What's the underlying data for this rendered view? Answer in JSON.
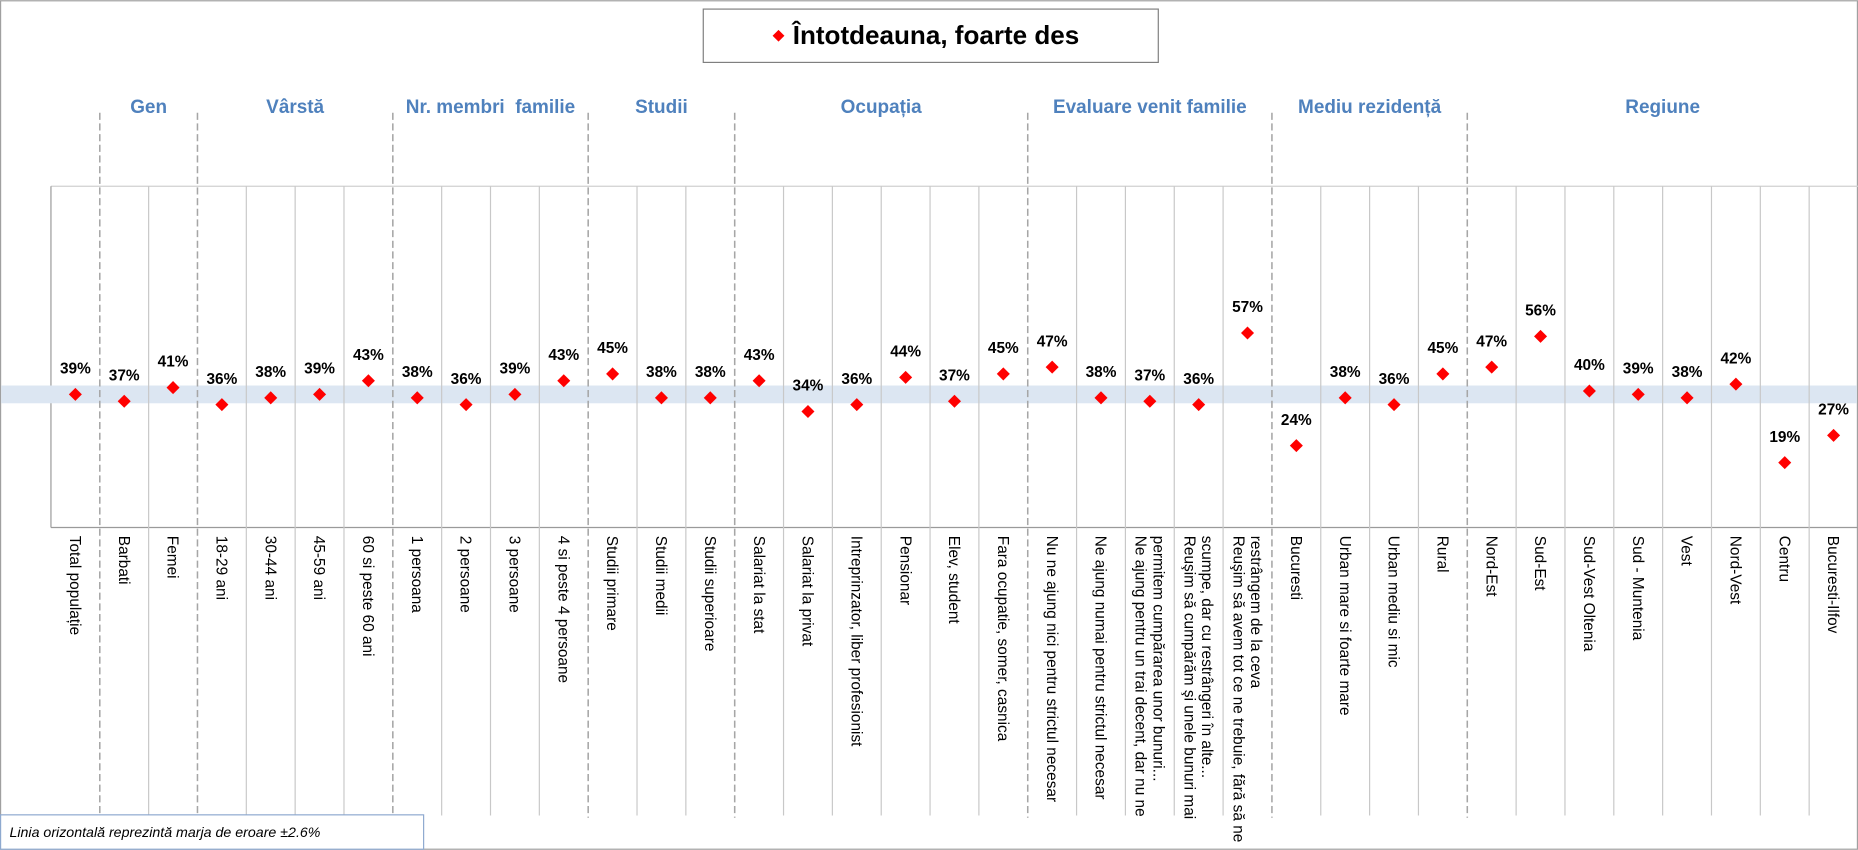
{
  "chart_data": {
    "type": "dot",
    "legend": "top",
    "ylim": [
      0,
      100
    ],
    "categories": [
      "Total populație",
      "Barbati",
      "Femei",
      "18-29 ani",
      "30-44 ani",
      "45-59 ani",
      "60 si peste 60 ani",
      "1 persoana",
      "2 persoane",
      "3 persoane",
      "4 si peste 4 persoane",
      "Studii primare",
      "Studii medii",
      "Studii superioare",
      "Salariat la stat",
      "Salariat la privat",
      "Intreprinzator, liber profesionist",
      "Pensionar",
      "Elev, student",
      "Fara ocupatie, somer, casnica",
      "Nu ne ajung nici pentru strictul necesar",
      "Ne ajung numai pentru strictul necesar",
      "Ne ajung pentru un trai decent, dar nu ne permitem cumpărarea unor bunuri...",
      "Reuşim să cumpărăm şi unele bunuri mai scumpe, dar cu restrângeri în alte...",
      "Reuşim să avem tot ce ne trebuie, fără să ne restrângem de la ceva",
      "Bucuresti",
      "Urban mare si foarte mare",
      "Urban mediu si mic",
      "Rural",
      "Nord-Est",
      "Sud-Est",
      "Sud-Vest Oltenia",
      "Sud - Muntenia",
      "Vest",
      "Nord-Vest",
      "Centru",
      "Bucuresti-Ilfov"
    ],
    "groups": [
      {
        "name": "Gen",
        "first": 1,
        "last": 2
      },
      {
        "name": "Vârstă",
        "first": 3,
        "last": 6
      },
      {
        "name": "Nr. membri  familie",
        "first": 7,
        "last": 10
      },
      {
        "name": "Studii",
        "first": 11,
        "last": 13
      },
      {
        "name": "Ocupația",
        "first": 14,
        "last": 19
      },
      {
        "name": "Evaluare venit familie",
        "first": 20,
        "last": 24
      },
      {
        "name": "Mediu rezidență",
        "first": 25,
        "last": 28
      },
      {
        "name": "Regiune",
        "first": 29,
        "last": 36
      }
    ],
    "series": [
      {
        "name": "Întotdeauna, foarte des",
        "color": "#ff0000",
        "values": [
          39,
          37,
          41,
          36,
          38,
          39,
          43,
          38,
          36,
          39,
          43,
          45,
          38,
          38,
          43,
          34,
          36,
          44,
          37,
          45,
          47,
          38,
          37,
          36,
          57,
          24,
          38,
          36,
          45,
          47,
          56,
          40,
          39,
          38,
          42,
          19,
          27
        ],
        "value_labels": [
          "39%",
          "37%",
          "41%",
          "36%",
          "38%",
          "39%",
          "43%",
          "38%",
          "36%",
          "39%",
          "43%",
          "45%",
          "38%",
          "38%",
          "43%",
          "34%",
          "36%",
          "44%",
          "37%",
          "45%",
          "47%",
          "38%",
          "37%",
          "36%",
          "57%",
          "24%",
          "38%",
          "36%",
          "45%",
          "47%",
          "56%",
          "40%",
          "39%",
          "38%",
          "42%",
          "19%",
          "27%"
        ]
      }
    ],
    "error_band": {
      "margin": 2.6,
      "color": "#dce6f2"
    },
    "annotation": "Linia orizontală reprezintă marja de eroare ±2.6%"
  }
}
